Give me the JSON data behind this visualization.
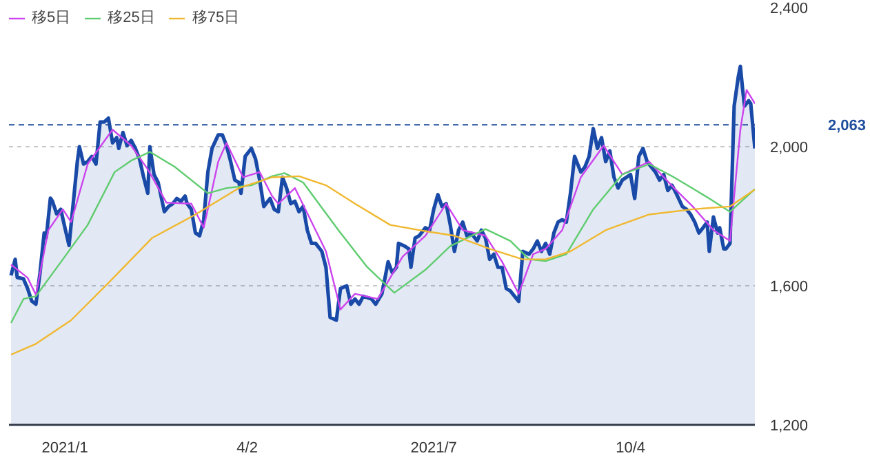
{
  "chart_data": {
    "type": "line",
    "xlim": [
      "2020-12-08",
      "2021-12-03"
    ],
    "xticks": [
      {
        "value": "2021-01-04",
        "label": "2021/1"
      },
      {
        "value": "2021-04-02",
        "label": "4/2"
      },
      {
        "value": "2021-07-01",
        "label": "2021/7"
      },
      {
        "value": "2021-10-04",
        "label": "10/4"
      }
    ],
    "ylim": [
      1200,
      2400
    ],
    "yticks": [
      {
        "value": 1200,
        "label": "1,200"
      },
      {
        "value": 1600,
        "label": "1,600"
      },
      {
        "value": 2000,
        "label": "2,000"
      },
      {
        "value": 2400,
        "label": "2,400"
      }
    ],
    "grid": "y",
    "legend": "top left",
    "ref_lines": [
      {
        "axis": "y",
        "value": 2063,
        "label": "2,063",
        "color": "#1f4e9c",
        "line_style": "dashed"
      }
    ],
    "series": [
      {
        "type": "area",
        "color": "#1a4aa8",
        "x": [
          "2020-12-09",
          "2020-12-11",
          "2020-12-12",
          "2020-12-15",
          "2020-12-17",
          "2020-12-19",
          "2020-12-21",
          "2020-12-23",
          "2020-12-25",
          "2020-12-26",
          "2020-12-28",
          "2020-12-29",
          "2020-12-31",
          "2021-01-02",
          "2021-01-04",
          "2021-01-06",
          "2021-01-08",
          "2021-01-10",
          "2021-01-11",
          "2021-01-13",
          "2021-01-15",
          "2021-01-17",
          "2021-01-19",
          "2021-01-21",
          "2021-01-23",
          "2021-01-25",
          "2021-01-27",
          "2021-01-29",
          "2021-01-30",
          "2021-02-01",
          "2021-02-03",
          "2021-02-05",
          "2021-02-07",
          "2021-02-09",
          "2021-02-11",
          "2021-02-13",
          "2021-02-14",
          "2021-02-16",
          "2021-02-18",
          "2021-02-21",
          "2021-02-23",
          "2021-02-25",
          "2021-02-27",
          "2021-03-01",
          "2021-03-03",
          "2021-03-04",
          "2021-03-06",
          "2021-03-08",
          "2021-03-10",
          "2021-03-12",
          "2021-03-14",
          "2021-03-16",
          "2021-03-19",
          "2021-03-21",
          "2021-03-23",
          "2021-03-25",
          "2021-03-27",
          "2021-03-29",
          "2021-03-30",
          "2021-04-01",
          "2021-04-04",
          "2021-04-06",
          "2021-04-08",
          "2021-04-10",
          "2021-04-13",
          "2021-04-15",
          "2021-04-17",
          "2021-04-19",
          "2021-04-21",
          "2021-04-23",
          "2021-04-25",
          "2021-04-27",
          "2021-04-29",
          "2021-05-01",
          "2021-05-03",
          "2021-05-05",
          "2021-05-08",
          "2021-05-10",
          "2021-05-12",
          "2021-05-15",
          "2021-05-17",
          "2021-05-20",
          "2021-05-22",
          "2021-05-24",
          "2021-05-26",
          "2021-05-28",
          "2021-06-01",
          "2021-06-03",
          "2021-06-06",
          "2021-06-09",
          "2021-06-11",
          "2021-06-13",
          "2021-06-14",
          "2021-06-17",
          "2021-06-19",
          "2021-06-20",
          "2021-06-22",
          "2021-06-24",
          "2021-06-27",
          "2021-06-29",
          "2021-07-01",
          "2021-07-03",
          "2021-07-05",
          "2021-07-07",
          "2021-07-09",
          "2021-07-11",
          "2021-07-13",
          "2021-07-15",
          "2021-07-17",
          "2021-07-19",
          "2021-07-22",
          "2021-07-24",
          "2021-07-26",
          "2021-07-28",
          "2021-07-30",
          "2021-08-01",
          "2021-08-03",
          "2021-08-05",
          "2021-08-07",
          "2021-08-09",
          "2021-08-11",
          "2021-08-13",
          "2021-08-16",
          "2021-08-18",
          "2021-08-20",
          "2021-08-22",
          "2021-08-24",
          "2021-08-26",
          "2021-08-28",
          "2021-08-30",
          "2021-09-01",
          "2021-09-03",
          "2021-09-05",
          "2021-09-07",
          "2021-09-10",
          "2021-09-12",
          "2021-09-14",
          "2021-09-16",
          "2021-09-18",
          "2021-09-20",
          "2021-09-22",
          "2021-09-24",
          "2021-09-26",
          "2021-09-28",
          "2021-09-30",
          "2021-10-04",
          "2021-10-06",
          "2021-10-08",
          "2021-10-10",
          "2021-10-12",
          "2021-10-14",
          "2021-10-16",
          "2021-10-18",
          "2021-10-20",
          "2021-10-22",
          "2021-10-24",
          "2021-10-26",
          "2021-10-29",
          "2021-10-31",
          "2021-11-02",
          "2021-11-04",
          "2021-11-06",
          "2021-11-08",
          "2021-11-10",
          "2021-11-11",
          "2021-11-13",
          "2021-11-15",
          "2021-11-16",
          "2021-11-18",
          "2021-11-19",
          "2021-11-21",
          "2021-11-23",
          "2021-11-25",
          "2021-11-26",
          "2021-11-27",
          "2021-11-28",
          "2021-11-30",
          "2021-12-01",
          "2021-12-03"
        ],
        "values": [
          1630,
          1676,
          1624,
          1620,
          1592,
          1556,
          1547,
          1638,
          1752,
          1738,
          1852,
          1843,
          1807,
          1820,
          1767,
          1716,
          1836,
          1957,
          2000,
          1950,
          1957,
          1972,
          1950,
          2071,
          2071,
          2082,
          2011,
          2026,
          1995,
          2041,
          2003,
          2018,
          1995,
          1965,
          1912,
          1866,
          2000,
          1920,
          1897,
          1813,
          1828,
          1836,
          1851,
          1843,
          1858,
          1836,
          1820,
          1752,
          1744,
          1790,
          1927,
          1995,
          2034,
          2034,
          2003,
          1957,
          1904,
          1897,
          1866,
          1972,
          1995,
          1965,
          1904,
          1828,
          1851,
          1820,
          1813,
          1912,
          1881,
          1836,
          1843,
          1813,
          1828,
          1760,
          1722,
          1722,
          1699,
          1653,
          1509,
          1501,
          1592,
          1600,
          1547,
          1562,
          1547,
          1570,
          1562,
          1547,
          1577,
          1669,
          1638,
          1653,
          1722,
          1714,
          1706,
          1653,
          1737,
          1744,
          1767,
          1760,
          1820,
          1862,
          1828,
          1836,
          1775,
          1699,
          1760,
          1783,
          1744,
          1752,
          1729,
          1760,
          1737,
          1676,
          1691,
          1653,
          1653,
          1592,
          1585,
          1570,
          1555,
          1699,
          1691,
          1706,
          1729,
          1699,
          1722,
          1691,
          1752,
          1783,
          1790,
          1783,
          1866,
          1972,
          1927,
          1942,
          1972,
          2052,
          1995,
          2026,
          1957,
          1988,
          1912,
          1881,
          1904,
          1920,
          1851,
          1972,
          1995,
          1957,
          1942,
          1927,
          1904,
          1920,
          1874,
          1889,
          1866,
          1828,
          1820,
          1805,
          1783,
          1752,
          1767,
          1783,
          1699,
          1798,
          1752,
          1767,
          1706,
          1706,
          1722,
          2117,
          2201,
          2231,
          2170,
          2117,
          2132,
          2124,
          1995
        ]
      },
      {
        "name": "移5日",
        "color": "#cc44ee",
        "x": [
          "2020-12-09",
          "2020-12-17",
          "2020-12-21",
          "2020-12-27",
          "2021-01-03",
          "2021-01-07",
          "2021-01-15",
          "2021-01-27",
          "2021-02-05",
          "2021-02-13",
          "2021-02-22",
          "2021-03-06",
          "2021-03-12",
          "2021-03-19",
          "2021-03-23",
          "2021-03-31",
          "2021-04-08",
          "2021-04-14",
          "2021-04-17",
          "2021-04-25",
          "2021-05-10",
          "2021-05-17",
          "2021-05-24",
          "2021-06-04",
          "2021-06-16",
          "2021-06-27",
          "2021-07-07",
          "2021-07-15",
          "2021-07-26",
          "2021-08-03",
          "2021-08-11",
          "2021-08-18",
          "2021-08-24",
          "2021-09-01",
          "2021-09-10",
          "2021-09-21",
          "2021-09-30",
          "2021-10-13",
          "2021-10-25",
          "2021-11-03",
          "2021-11-13",
          "2021-11-21",
          "2021-11-26",
          "2021-11-29",
          "2021-12-03"
        ],
        "values": [
          1661,
          1623,
          1574,
          1760,
          1820,
          1783,
          1950,
          2049,
          2003,
          1935,
          1839,
          1836,
          1767,
          1957,
          2011,
          1912,
          1927,
          1858,
          1836,
          1881,
          1699,
          1532,
          1577,
          1562,
          1684,
          1744,
          1836,
          1760,
          1744,
          1669,
          1577,
          1691,
          1706,
          1760,
          1912,
          2003,
          1920,
          1957,
          1881,
          1828,
          1760,
          1729,
          2049,
          2163,
          2124
        ]
      },
      {
        "name": "移25日",
        "color": "#5fcc6f",
        "x": [
          "2020-12-09",
          "2020-12-15",
          "2020-12-21",
          "2021-01-03",
          "2021-01-15",
          "2021-01-28",
          "2021-02-05",
          "2021-02-14",
          "2021-02-26",
          "2021-03-14",
          "2021-03-23",
          "2021-04-04",
          "2021-04-14",
          "2021-04-20",
          "2021-04-29",
          "2021-05-16",
          "2021-05-30",
          "2021-06-12",
          "2021-06-27",
          "2021-07-09",
          "2021-07-26",
          "2021-08-07",
          "2021-08-16",
          "2021-08-24",
          "2021-09-03",
          "2021-09-16",
          "2021-09-30",
          "2021-10-13",
          "2021-10-25",
          "2021-11-11",
          "2021-11-21",
          "2021-12-03"
        ],
        "values": [
          1493,
          1562,
          1570,
          1676,
          1775,
          1927,
          1960,
          1985,
          1942,
          1866,
          1881,
          1889,
          1915,
          1924,
          1897,
          1760,
          1653,
          1580,
          1646,
          1714,
          1763,
          1729,
          1676,
          1671,
          1691,
          1820,
          1920,
          1950,
          1912,
          1851,
          1813,
          1878
        ]
      },
      {
        "name": "移75日",
        "color": "#f0b830",
        "x": [
          "2020-12-09",
          "2020-12-21",
          "2021-01-07",
          "2021-01-25",
          "2021-02-15",
          "2021-03-08",
          "2021-03-29",
          "2021-04-14",
          "2021-04-27",
          "2021-05-10",
          "2021-05-24",
          "2021-06-10",
          "2021-06-27",
          "2021-07-11",
          "2021-07-28",
          "2021-08-13",
          "2021-08-24",
          "2021-09-05",
          "2021-09-22",
          "2021-10-13",
          "2021-11-03",
          "2021-11-21",
          "2021-12-03"
        ],
        "values": [
          1402,
          1433,
          1501,
          1608,
          1737,
          1805,
          1881,
          1912,
          1915,
          1889,
          1836,
          1775,
          1757,
          1744,
          1706,
          1676,
          1676,
          1699,
          1760,
          1805,
          1820,
          1828,
          1877
        ]
      }
    ]
  }
}
